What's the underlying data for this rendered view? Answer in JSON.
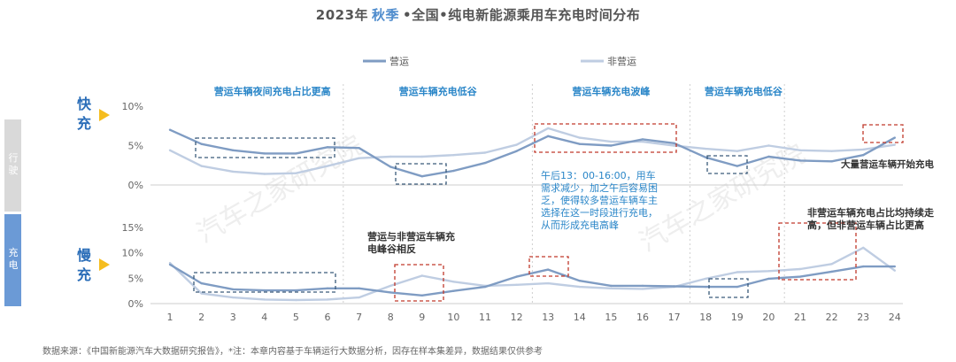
{
  "title": {
    "year": "2023年",
    "season": "秋季",
    "rest": "•全国•纯电新能源乘用车充电时间分布"
  },
  "legend": {
    "operating": "营运",
    "non_operating": "非营运"
  },
  "colors": {
    "operating": "#7f9cc3",
    "non_operating": "#bfcde2",
    "box_red": "#c0392b",
    "box_blue": "#3a5a7a",
    "annotation": "#2a86c8",
    "arrow": "#f5bd1f",
    "side_gray": "#d9d9d9",
    "side_blue": "#6b9ad6"
  },
  "side_labels": {
    "top": "行驶",
    "bottom": "充电"
  },
  "panel_labels": {
    "fast": "快充",
    "slow": "慢充"
  },
  "footer": "数据来源：《中国新能源汽车大数据研究报告》，*注：本章内容基于车辆运行大数据分析，因存在样本集差异，数据结果仅供参考",
  "watermark": "汽车之家研究院",
  "chart_data": [
    {
      "type": "line",
      "panel": "快充",
      "x": [
        1,
        2,
        3,
        4,
        5,
        6,
        7,
        8,
        9,
        10,
        11,
        12,
        13,
        14,
        15,
        16,
        17,
        18,
        19,
        20,
        21,
        22,
        23,
        24
      ],
      "yticks": [
        "0%",
        "5%",
        "10%"
      ],
      "ylim": [
        0,
        10
      ],
      "series": [
        {
          "name": "营运",
          "values": [
            7.0,
            5.2,
            4.4,
            4.0,
            4.0,
            4.8,
            4.7,
            2.3,
            1.1,
            1.8,
            2.8,
            4.3,
            6.2,
            5.2,
            5.0,
            5.8,
            5.3,
            3.5,
            2.4,
            3.6,
            3.1,
            3.0,
            3.8,
            6.0
          ]
        },
        {
          "name": "非营运",
          "values": [
            4.4,
            2.4,
            1.7,
            1.4,
            1.5,
            2.4,
            3.4,
            3.6,
            3.6,
            3.8,
            4.1,
            5.1,
            7.2,
            6.0,
            5.5,
            5.5,
            5.0,
            4.6,
            4.3,
            5.0,
            4.4,
            4.3,
            4.5,
            5.1
          ]
        }
      ],
      "headers": [
        {
          "text": "营运车辆夜间充电占比更高",
          "x": 4.25
        },
        {
          "text": "营运车辆充电低谷",
          "x": 9.5
        },
        {
          "text": "营运车辆充电波峰",
          "x": 15
        },
        {
          "text": "营运车辆充电低谷",
          "x": 19.2
        }
      ],
      "annotations": [
        {
          "text": "午后13：00-16:00，用车需求减少，加之午后容易困乏，使得较多营运车辆车主选择在这一时段进行充电，从而形成充电高峰",
          "lines": [
            "午后13：00-16:00，用车",
            "需求减少，加之午后容易困",
            "乏，使得较多营运车辆车主",
            "选择在这一时段进行充电，",
            "从而形成充电高峰"
          ]
        },
        {
          "text": "大量营运车辆开始充电"
        }
      ]
    },
    {
      "type": "line",
      "panel": "慢充",
      "x": [
        1,
        2,
        3,
        4,
        5,
        6,
        7,
        8,
        9,
        10,
        11,
        12,
        13,
        14,
        15,
        16,
        17,
        18,
        19,
        20,
        21,
        22,
        23,
        24
      ],
      "xticks": [
        "1",
        "2",
        "3",
        "4",
        "5",
        "6",
        "7",
        "8",
        "9",
        "10",
        "11",
        "12",
        "13",
        "14",
        "15",
        "16",
        "17",
        "18",
        "19",
        "20",
        "21",
        "22",
        "23",
        "24"
      ],
      "yticks": [
        "0%",
        "5%",
        "10%",
        "15%"
      ],
      "ylim": [
        0,
        15
      ],
      "series": [
        {
          "name": "营运",
          "values": [
            7.7,
            4.0,
            2.8,
            2.6,
            2.6,
            3.0,
            3.0,
            2.2,
            1.6,
            2.5,
            3.3,
            5.3,
            6.7,
            4.5,
            3.5,
            3.5,
            3.4,
            3.3,
            3.3,
            4.9,
            5.3,
            6.3,
            7.3,
            7.3
          ]
        },
        {
          "name": "非营运",
          "values": [
            8.0,
            2.0,
            1.2,
            0.8,
            0.7,
            0.8,
            1.2,
            3.5,
            5.5,
            4.3,
            3.5,
            3.7,
            4.0,
            3.3,
            3.0,
            2.9,
            3.3,
            4.9,
            6.2,
            6.4,
            6.8,
            7.8,
            11.0,
            6.5
          ]
        }
      ],
      "annotations": [
        {
          "text": "营运与非营运车辆充电峰谷相反",
          "lines": [
            "营运与非营运车辆充",
            "电峰谷相反"
          ]
        },
        {
          "text": "非营运车辆充电占比均持续走高，但非营运车辆占比更高",
          "lines": [
            "非营运车辆充电占比均持续走",
            "高，但非营运车辆占比更高"
          ]
        }
      ]
    }
  ]
}
